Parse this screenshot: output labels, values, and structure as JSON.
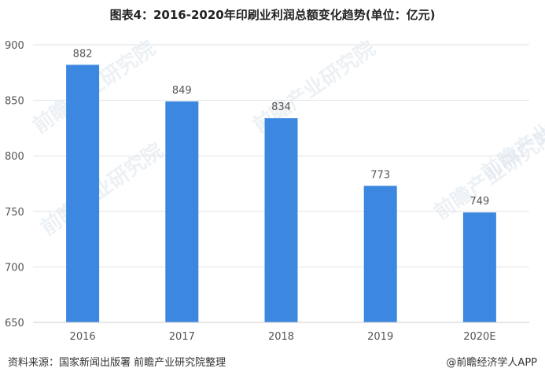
{
  "chart_data": {
    "type": "bar",
    "title": "图表4：2016-2020年印刷业利润总额变化趋势(单位：亿元)",
    "categories": [
      "2016",
      "2017",
      "2018",
      "2019",
      "2020E"
    ],
    "values": [
      882,
      849,
      834,
      773,
      749
    ],
    "ylim": [
      650,
      900
    ],
    "yticks": [
      650,
      700,
      750,
      800,
      850,
      900
    ],
    "grid": true,
    "bar_color": "#3c87e0",
    "xlabel": "",
    "ylabel": ""
  },
  "footer": {
    "source": "资料来源：国家新闻出版署 前瞻产业研究院整理",
    "brand": "@前瞻经济学人APP"
  },
  "watermark": {
    "text": "前瞻产业研究院"
  }
}
